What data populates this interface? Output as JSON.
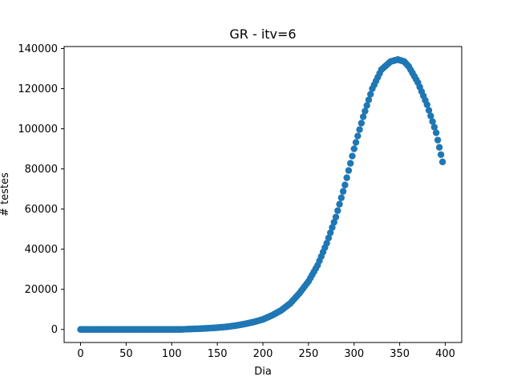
{
  "chart_data": {
    "type": "scatter",
    "title": "GR - itv=6",
    "xlabel": "Dia",
    "ylabel": "# testes",
    "xlim": [
      -18,
      418
    ],
    "ylim": [
      -6500,
      141000
    ],
    "xticks": [
      0,
      50,
      100,
      150,
      200,
      250,
      300,
      350,
      400
    ],
    "yticks": [
      0,
      20000,
      40000,
      60000,
      80000,
      100000,
      120000,
      140000
    ],
    "grid": false,
    "marker_color": "#1f77b4",
    "series": [
      {
        "points": [
          [
            0,
            0
          ],
          [
            10,
            0
          ],
          [
            20,
            0
          ],
          [
            30,
            0
          ],
          [
            40,
            0
          ],
          [
            50,
            0
          ],
          [
            60,
            0
          ],
          [
            70,
            0
          ],
          [
            80,
            0
          ],
          [
            90,
            0
          ],
          [
            100,
            0
          ],
          [
            110,
            0
          ],
          [
            120,
            200
          ],
          [
            130,
            350
          ],
          [
            140,
            600
          ],
          [
            150,
            900
          ],
          [
            160,
            1300
          ],
          [
            170,
            1900
          ],
          [
            180,
            2700
          ],
          [
            190,
            3700
          ],
          [
            200,
            5000
          ],
          [
            210,
            7000
          ],
          [
            220,
            9500
          ],
          [
            230,
            13000
          ],
          [
            240,
            18000
          ],
          [
            250,
            24000
          ],
          [
            260,
            32000
          ],
          [
            270,
            43000
          ],
          [
            280,
            56000
          ],
          [
            290,
            72000
          ],
          [
            300,
            90000
          ],
          [
            310,
            106000
          ],
          [
            320,
            120000
          ],
          [
            330,
            129500
          ],
          [
            340,
            133500
          ],
          [
            348,
            134500
          ],
          [
            355,
            133500
          ],
          [
            360,
            131000
          ],
          [
            370,
            123000
          ],
          [
            380,
            112000
          ],
          [
            390,
            98000
          ],
          [
            397,
            83500
          ]
        ]
      }
    ]
  }
}
